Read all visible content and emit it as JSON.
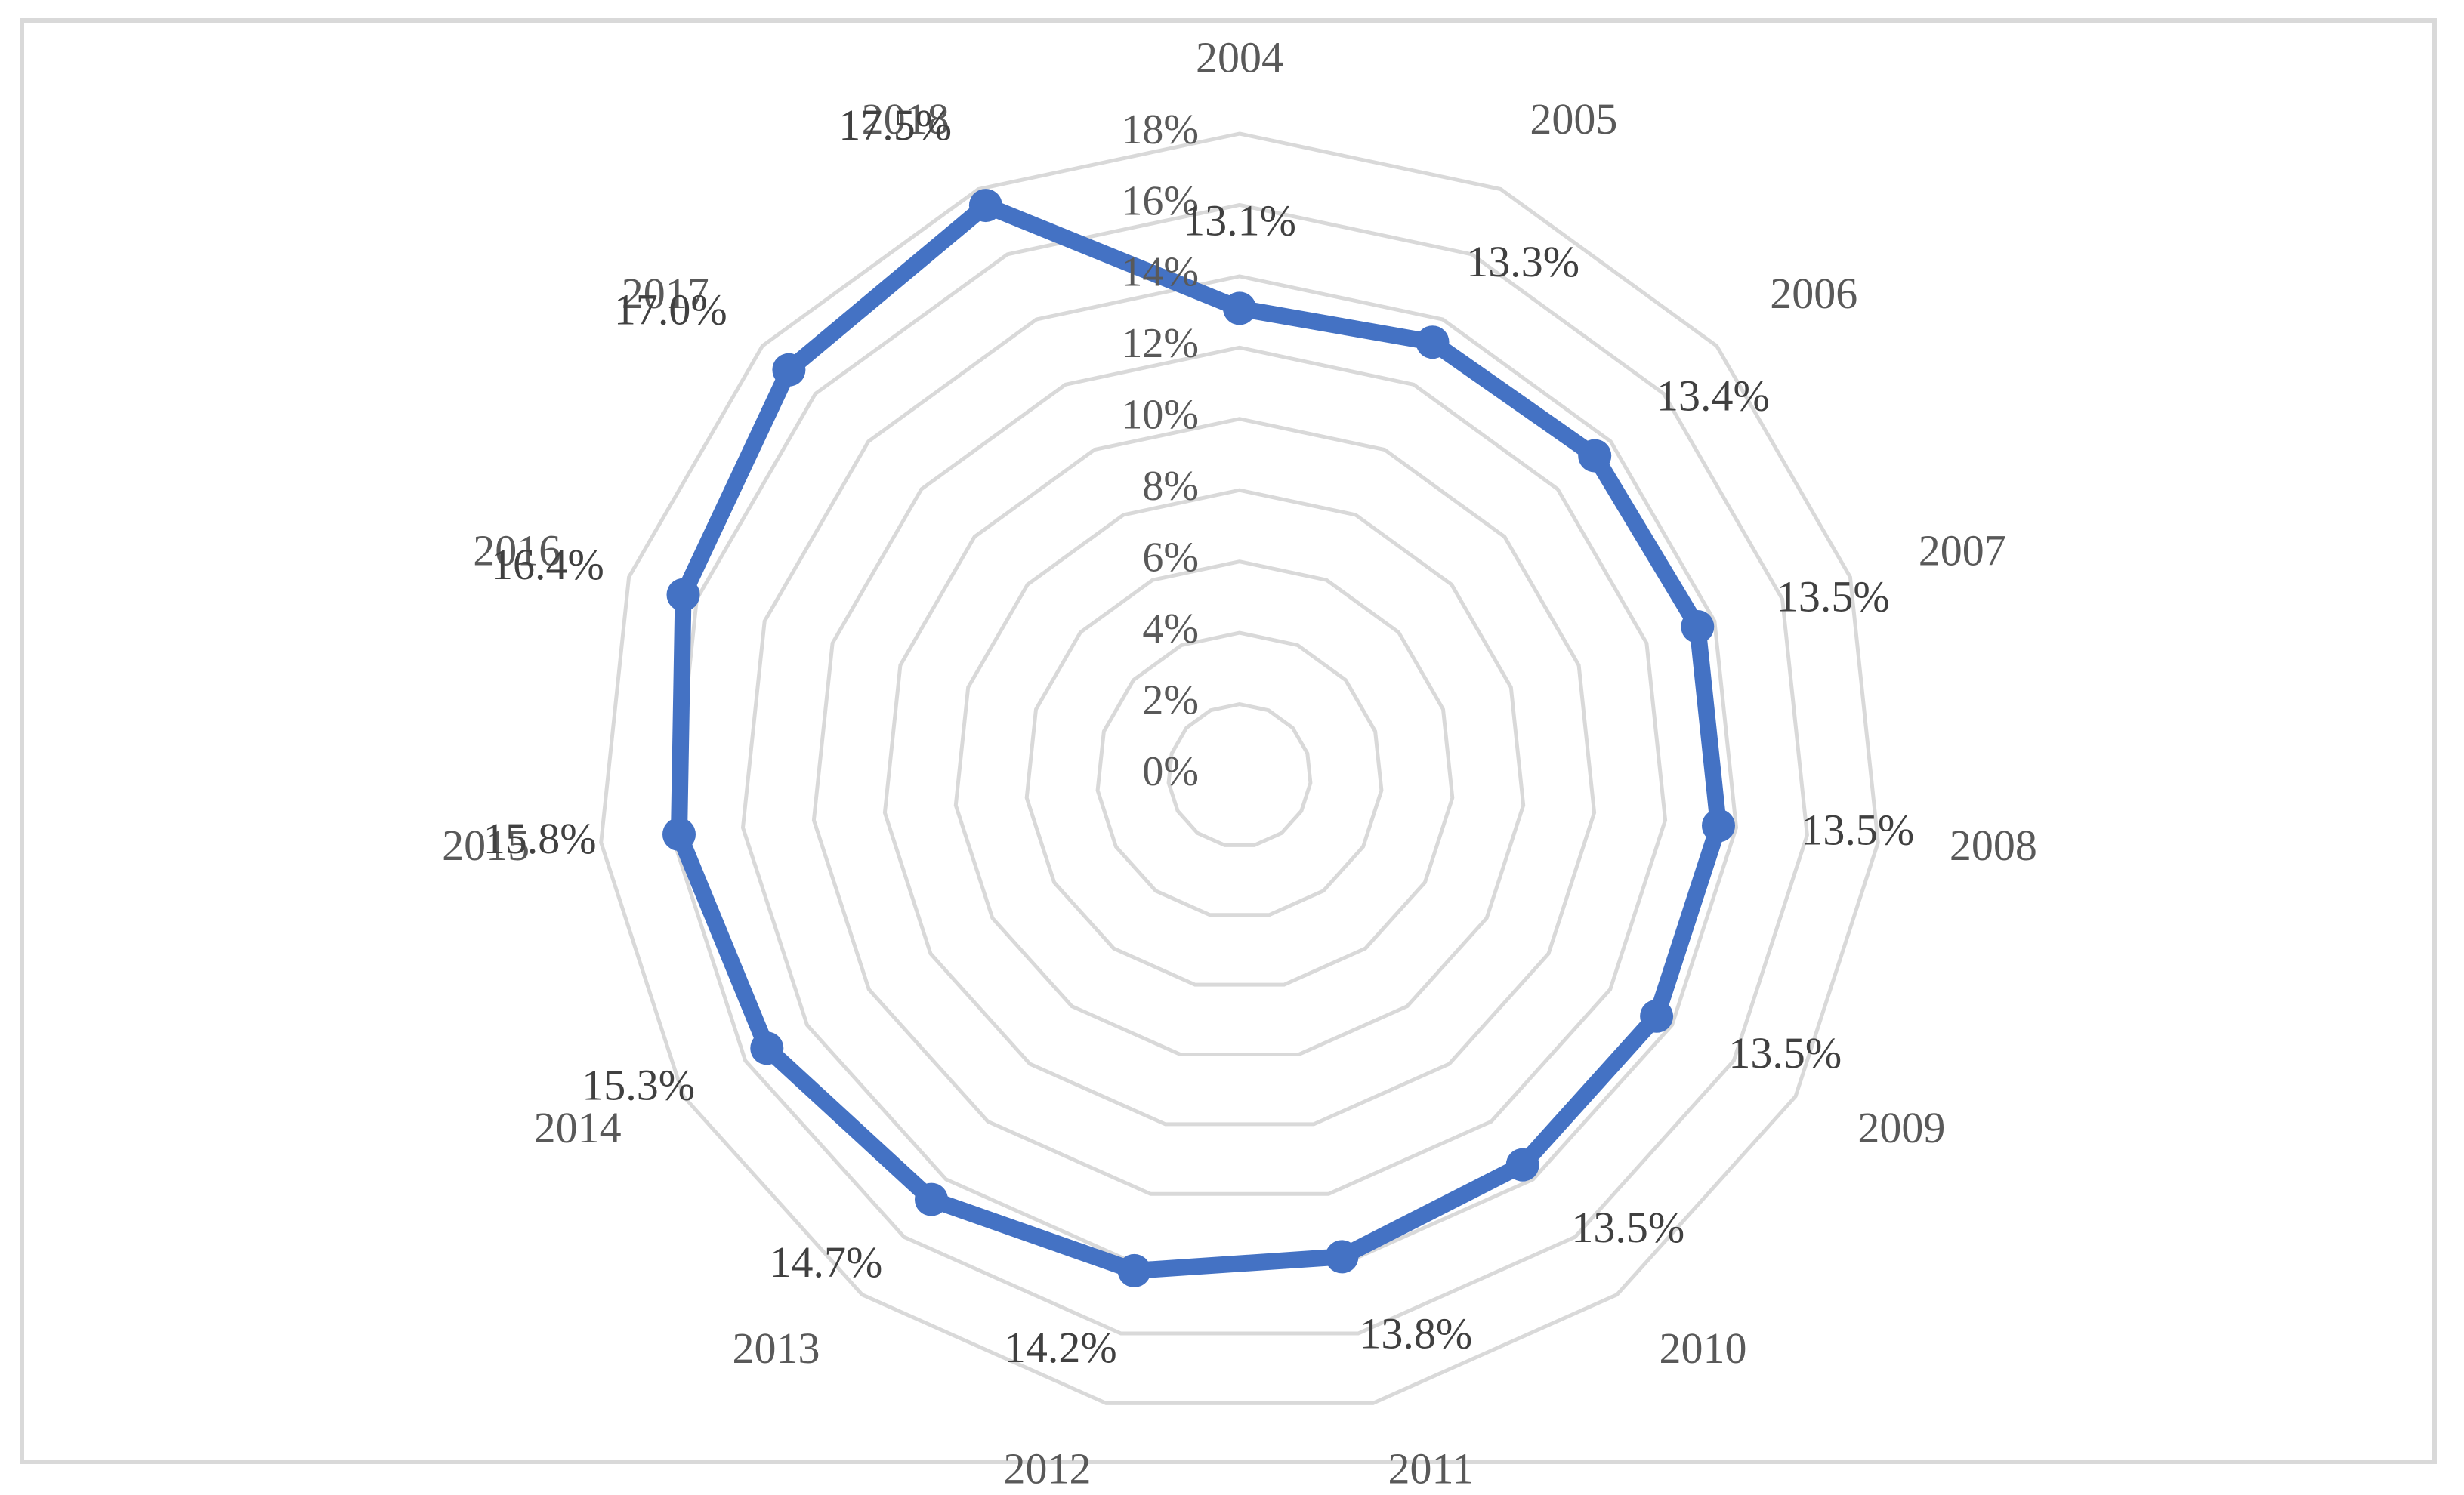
{
  "chart_data": {
    "type": "radar",
    "categories": [
      "2004",
      "2005",
      "2006",
      "2007",
      "2008",
      "2009",
      "2010",
      "2011",
      "2012",
      "2013",
      "2014",
      "2015",
      "2016",
      "2017",
      "2018"
    ],
    "series": [
      {
        "values": [
          13.1,
          13.3,
          13.4,
          13.5,
          13.5,
          13.5,
          13.5,
          13.8,
          14.2,
          14.7,
          15.3,
          15.8,
          16.4,
          17.0,
          17.5
        ],
        "data_labels": [
          "13.1%",
          "13.3%",
          "13.4%",
          "13.5%",
          "13.5%",
          "13.5%",
          "13.5%",
          "13.8%",
          "14.2%",
          "14.7%",
          "15.3%",
          "15.8%",
          "16.4%",
          "17.0%",
          "17.5%"
        ],
        "color": "#4472c4"
      }
    ],
    "radial_ticks": [
      "0%",
      "2%",
      "4%",
      "6%",
      "8%",
      "10%",
      "12%",
      "14%",
      "16%",
      "18%"
    ],
    "rlim": [
      0,
      18
    ],
    "grid": true,
    "grid_color": "#d9d9d9",
    "label_color": "#595959",
    "legend": "none"
  }
}
